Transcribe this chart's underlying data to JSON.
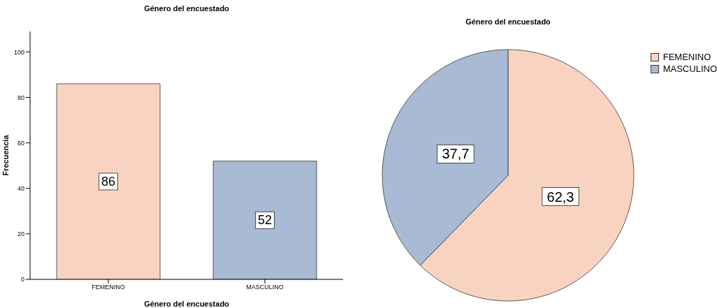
{
  "chart_data": [
    {
      "type": "bar",
      "title": "Género del encuestado",
      "xlabel": "Género del encuestado",
      "ylabel": "Frecuencia",
      "categories": [
        "FEMENINO",
        "MASCULINO"
      ],
      "values": [
        86,
        52
      ],
      "colors": [
        "#f9d3c1",
        "#a8bad4"
      ],
      "ylim": [
        0,
        109
      ],
      "yticks": [
        0,
        20,
        40,
        60,
        80,
        100
      ],
      "data_labels": true
    },
    {
      "type": "pie",
      "title": "Género del encuestado",
      "categories": [
        "FEMENINO",
        "MASCULINO"
      ],
      "values": [
        62.3,
        37.7
      ],
      "value_labels": [
        "62,3",
        "37,7"
      ],
      "colors": [
        "#f9d3c1",
        "#a8bad4"
      ],
      "legend": "top right"
    }
  ]
}
